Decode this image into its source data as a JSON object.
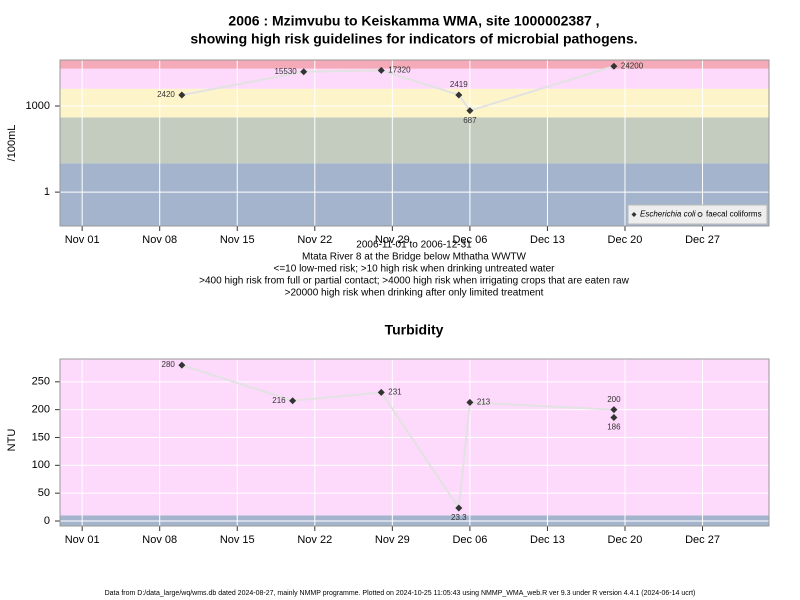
{
  "chart_data": [
    {
      "type": "line",
      "title": "2006 : Mzimvubu to Keiskamma WMA, site 1000002387 ,",
      "subtitle": "showing high risk guidelines for indicators of microbial pathogens.",
      "ylabel": "/100mL",
      "log_y": true,
      "grid": true,
      "legend": "bottom-right",
      "ylim": [
        0.066,
        40000
      ],
      "yticks": [
        1,
        1000
      ],
      "xlim": [
        "2006-10-30",
        "2007-01-02"
      ],
      "xticks": [
        {
          "value": "2006-11-01",
          "label": "Nov 01"
        },
        {
          "value": "2006-11-08",
          "label": "Nov 08"
        },
        {
          "value": "2006-11-15",
          "label": "Nov 15"
        },
        {
          "value": "2006-11-22",
          "label": "Nov 22"
        },
        {
          "value": "2006-11-29",
          "label": "Nov 29"
        },
        {
          "value": "2006-12-06",
          "label": "Dec 06"
        },
        {
          "value": "2006-12-13",
          "label": "Dec 13"
        },
        {
          "value": "2006-12-20",
          "label": "Dec 20"
        },
        {
          "value": "2006-12-27",
          "label": "Dec 27"
        }
      ],
      "thresholds": [
        10,
        400,
        4000,
        20000
      ],
      "band_colors": [
        "#a3b4cc",
        "#c4ccc0",
        "#fdf5c9",
        "#fdd9fb",
        "#f4aab8"
      ],
      "line_color": "#e2e2e2",
      "series": [
        {
          "name": "Escherichia coli",
          "color": "#333333",
          "marker": "diamond",
          "x": [
            "2006-11-10",
            "2006-11-21",
            "2006-11-28",
            "2006-12-05",
            "2006-12-06",
            "2006-12-19"
          ],
          "values": [
            2420,
            15530,
            17320,
            2419,
            687,
            24200
          ]
        },
        {
          "name": "faecal coliforms",
          "color": "#333333",
          "marker": "circle-open",
          "x": [],
          "values": []
        }
      ],
      "xlabel": "2006-11-01 to 2006-12-31",
      "notes": [
        "Mtata River 8 at the Bridge below Mthatha WWTW",
        "<=10 low-med risk; >10 high risk when drinking untreated water",
        ">400 high risk from full or partial contact; >4000 high risk when irrigating crops that are eaten raw",
        ">20000 high risk when drinking after only limited treatment"
      ]
    },
    {
      "type": "line",
      "title": "Turbidity",
      "ylabel": "NTU",
      "log_y": false,
      "grid": true,
      "ylim": [
        -9,
        291
      ],
      "yticks": [
        0,
        50,
        100,
        150,
        200,
        250
      ],
      "xlim": [
        "2006-10-30",
        "2007-01-02"
      ],
      "xticks": [
        {
          "value": "2006-11-01",
          "label": "Nov 01"
        },
        {
          "value": "2006-11-08",
          "label": "Nov 08"
        },
        {
          "value": "2006-11-15",
          "label": "Nov 15"
        },
        {
          "value": "2006-11-22",
          "label": "Nov 22"
        },
        {
          "value": "2006-11-29",
          "label": "Nov 29"
        },
        {
          "value": "2006-12-06",
          "label": "Dec 06"
        },
        {
          "value": "2006-12-13",
          "label": "Dec 13"
        },
        {
          "value": "2006-12-20",
          "label": "Dec 20"
        },
        {
          "value": "2006-12-27",
          "label": "Dec 27"
        }
      ],
      "thresholds": [
        10
      ],
      "band_colors": [
        "#a3b4cc",
        "#fdd9fb"
      ],
      "line_color": "#e2e2e2",
      "series": [
        {
          "color": "#333333",
          "marker": "diamond",
          "x": [
            "2006-11-10",
            "2006-11-20",
            "2006-11-28",
            "2006-12-05",
            "2006-12-06",
            "2006-12-19",
            "2006-12-19"
          ],
          "values": [
            280,
            216,
            231,
            23.3,
            213,
            200,
            186
          ]
        }
      ]
    }
  ],
  "footer": "Data from D:/data_large/wq/wms.db dated 2024-08-27, mainly NMMP programme. Plotted on 2024-10-25 11:05:43 using NMMP_WMA_web.R ver 9.3 under R version 4.4.1 (2024-06-14 ucrt)"
}
